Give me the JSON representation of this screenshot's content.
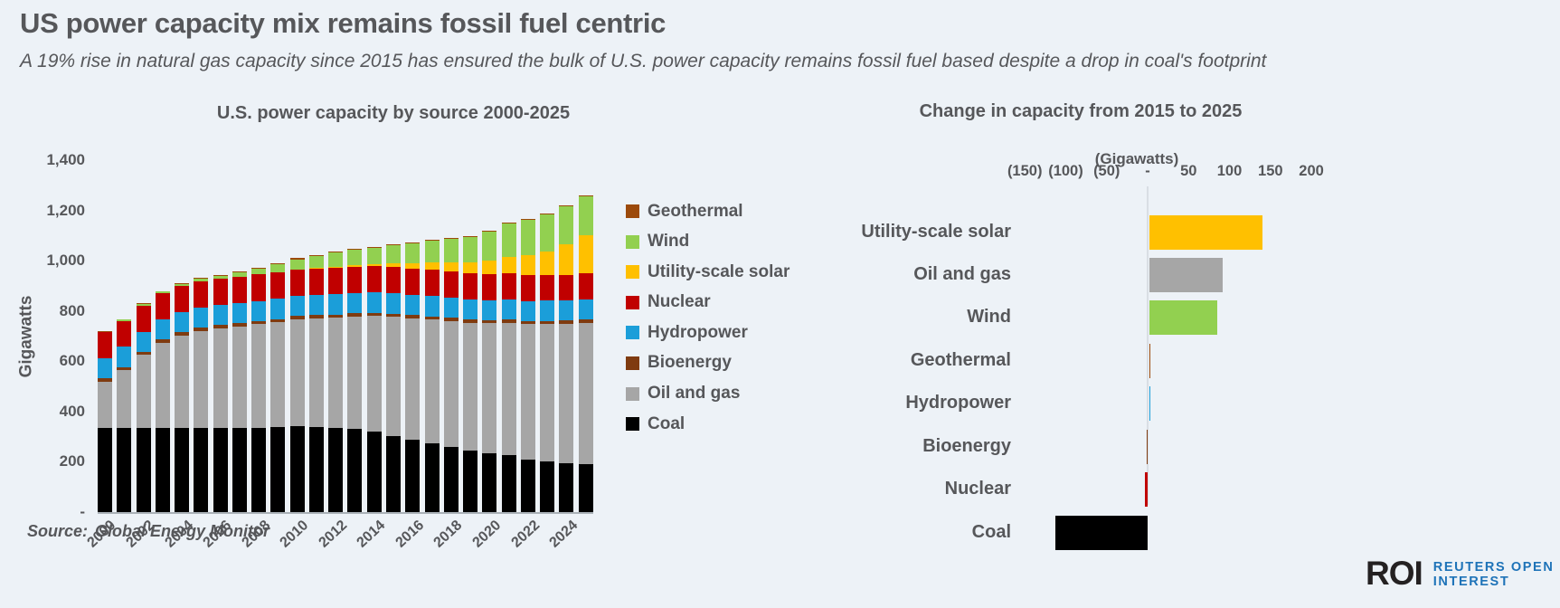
{
  "header": {
    "title": "US power capacity mix remains fossil fuel centric",
    "subtitle": "A 19% rise in natural gas capacity since 2015 has ensured the bulk of U.S. power capacity remains fossil fuel based despite a drop in coal's footprint"
  },
  "source": {
    "label": "Source:",
    "value": "Global Energy Monitor"
  },
  "logo": {
    "brand": "ROI",
    "line1": "REUTERS OPEN",
    "line2": "INTEREST",
    "blue": "#1e73b8",
    "dark": "#242122"
  },
  "colors": {
    "background": "#edf2f7",
    "text": "#56575a",
    "coal": "#000000",
    "oil_and_gas": "#a6a6a6",
    "bioenergy": "#7f3b10",
    "hydropower": "#1b9ed9",
    "nuclear": "#c00000",
    "utility_scale_solar": "#ffc000",
    "wind": "#92d050",
    "geothermal": "#9c4a0b"
  },
  "chart_data": [
    {
      "type": "bar",
      "stacked": true,
      "title": "U.S. power capacity by source 2000-2025",
      "xlabel": "",
      "ylabel": "Gigawatts",
      "ylim": [
        0,
        1400
      ],
      "grid": false,
      "legend_position": "right",
      "yticks": [
        {
          "value": 1400,
          "label": "1,400"
        },
        {
          "value": 1200,
          "label": "1,200"
        },
        {
          "value": 1000,
          "label": "1,000"
        },
        {
          "value": 800,
          "label": "800"
        },
        {
          "value": 600,
          "label": "600"
        },
        {
          "value": 400,
          "label": "400"
        },
        {
          "value": 200,
          "label": "200"
        },
        {
          "value": 0,
          "label": "-"
        }
      ],
      "categories": [
        2000,
        2001,
        2002,
        2003,
        2004,
        2005,
        2006,
        2007,
        2008,
        2009,
        2010,
        2011,
        2012,
        2013,
        2014,
        2015,
        2016,
        2017,
        2018,
        2019,
        2020,
        2021,
        2022,
        2023,
        2024,
        2025
      ],
      "xtick_labels": [
        "2000",
        "2002",
        "2004",
        "2006",
        "2008",
        "2010",
        "2012",
        "2014",
        "2016",
        "2018",
        "2020",
        "2022",
        "2024"
      ],
      "series": [
        {
          "name": "Coal",
          "color": "#000000",
          "values": [
            333,
            334,
            335,
            334,
            333,
            333,
            334,
            334,
            335,
            337,
            341,
            340,
            333,
            330,
            320,
            303,
            288,
            274,
            260,
            243,
            233,
            226,
            209,
            200,
            193,
            190
          ]
        },
        {
          "name": "Oil and gas",
          "color": "#a6a6a6",
          "values": [
            186,
            230,
            290,
            340,
            370,
            388,
            398,
            405,
            412,
            418,
            426,
            432,
            440,
            448,
            460,
            474,
            482,
            492,
            500,
            510,
            518,
            528,
            538,
            548,
            556,
            564
          ]
        },
        {
          "name": "Bioenergy",
          "color": "#7f3b10",
          "values": [
            13,
            13,
            13,
            13,
            13,
            13,
            13,
            13,
            13,
            13,
            13,
            13,
            13,
            13,
            13,
            13,
            13,
            13,
            13,
            13,
            13,
            13,
            13,
            13,
            13,
            13
          ]
        },
        {
          "name": "Hydropower",
          "color": "#1b9ed9",
          "values": [
            80,
            80,
            80,
            80,
            80,
            80,
            80,
            80,
            80,
            80,
            80,
            80,
            80,
            80,
            80,
            80,
            80,
            80,
            80,
            80,
            80,
            80,
            80,
            80,
            80,
            80
          ]
        },
        {
          "name": "Nuclear",
          "color": "#c00000",
          "values": [
            104,
            104,
            104,
            104,
            104,
            105,
            105,
            105,
            105,
            105,
            105,
            105,
            105,
            105,
            105,
            105,
            105,
            105,
            104,
            104,
            104,
            103,
            103,
            102,
            102,
            102
          ]
        },
        {
          "name": "Utility-scale solar",
          "color": "#ffc000",
          "values": [
            0,
            0,
            0,
            0,
            0,
            0,
            0,
            0,
            0,
            0,
            1,
            2,
            4,
            7,
            10,
            14,
            21,
            28,
            35,
            42,
            52,
            65,
            79,
            95,
            122,
            152
          ]
        },
        {
          "name": "Wind",
          "color": "#92d050",
          "values": [
            2,
            4,
            5,
            6,
            7,
            9,
            11,
            16,
            24,
            34,
            40,
            45,
            59,
            60,
            64,
            72,
            81,
            87,
            94,
            103,
            117,
            132,
            140,
            147,
            152,
            155
          ]
        },
        {
          "name": "Geothermal",
          "color": "#9c4a0b",
          "values": [
            3,
            3,
            3,
            3,
            3,
            3,
            3,
            3,
            3,
            3,
            4,
            4,
            4,
            4,
            4,
            4,
            4,
            4,
            4,
            4,
            4,
            4,
            4,
            4,
            4,
            4
          ]
        }
      ],
      "legend_top_to_bottom": [
        {
          "label": "Geothermal",
          "color": "#9c4a0b"
        },
        {
          "label": "Wind",
          "color": "#92d050"
        },
        {
          "label": "Utility-scale solar",
          "color": "#ffc000"
        },
        {
          "label": "Nuclear",
          "color": "#c00000"
        },
        {
          "label": "Hydropower",
          "color": "#1b9ed9"
        },
        {
          "label": "Bioenergy",
          "color": "#7f3b10"
        },
        {
          "label": "Oil and gas",
          "color": "#a6a6a6"
        },
        {
          "label": "Coal",
          "color": "#000000"
        }
      ]
    },
    {
      "type": "bar",
      "orientation": "horizontal",
      "title": "Change in capacity from 2015 to 2025",
      "xlabel": "(Gigawatts)",
      "xlim": [
        -150,
        200
      ],
      "grid": false,
      "xticks": [
        {
          "value": -150,
          "label": "(150)"
        },
        {
          "value": -100,
          "label": "(100)"
        },
        {
          "value": -50,
          "label": "(50)"
        },
        {
          "value": 0,
          "label": "-"
        },
        {
          "value": 50,
          "label": "50"
        },
        {
          "value": 100,
          "label": "100"
        },
        {
          "value": 150,
          "label": "150"
        },
        {
          "value": 200,
          "label": "200"
        }
      ],
      "categories": [
        "Utility-scale solar",
        "Oil and gas",
        "Wind",
        "Geothermal",
        "Hydropower",
        "Bioenergy",
        "Nuclear",
        "Coal"
      ],
      "values": [
        138,
        90,
        83,
        0.4,
        0.3,
        -1.5,
        -3.5,
        -113
      ],
      "bar_colors": [
        "#ffc000",
        "#a6a6a6",
        "#92d050",
        "#9c4a0b",
        "#1b9ed9",
        "#7f3b10",
        "#c00000",
        "#000000"
      ]
    }
  ]
}
